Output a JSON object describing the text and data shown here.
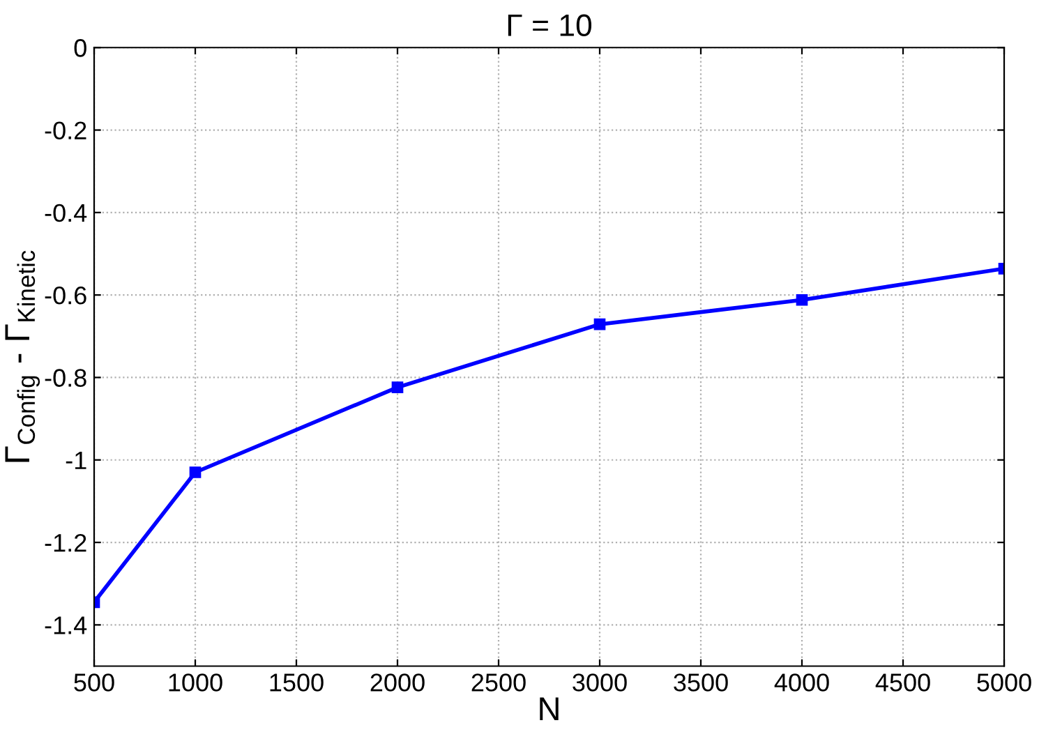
{
  "chart_data": {
    "type": "line",
    "title": "Γ = 10",
    "xlabel": "N",
    "ylabel": "Γ$_{Config}$ - Γ$_{Kinetic}$",
    "x": [
      500,
      1000,
      2000,
      3000,
      4000,
      5000
    ],
    "series": [
      {
        "color": "#0000ff",
        "values": [
          -1.345,
          -1.03,
          -0.824,
          -0.671,
          -0.612,
          -0.536
        ]
      }
    ],
    "xlim": [
      500,
      5000
    ],
    "xticks": [
      500,
      1000,
      1500,
      2000,
      2500,
      3000,
      3500,
      4000,
      4500,
      5000
    ],
    "ylim": [
      -1.5,
      0
    ],
    "yticks": [
      -1.4,
      -1.2,
      -1,
      -0.8,
      -0.6,
      -0.4,
      -0.2,
      0
    ],
    "grid": true,
    "marker": "square",
    "line_style": "solid"
  }
}
